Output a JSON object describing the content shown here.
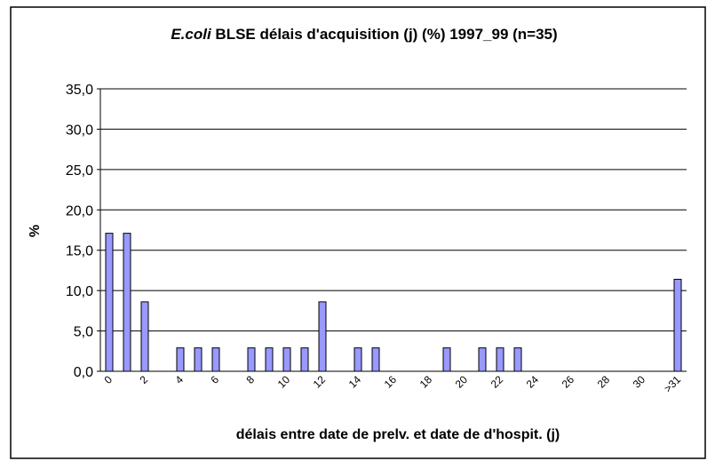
{
  "chart_data": {
    "type": "bar",
    "title_italic": "E.coli",
    "title": "BLSE délais d'acquisition (j) (%) 1997_99 (n=35)",
    "x_label": "délais entre date de prelv. et date de d'hospit. (j)",
    "y_label": "%",
    "categories": [
      "0",
      null,
      "2",
      null,
      "4",
      null,
      "6",
      null,
      "8",
      null,
      "10",
      null,
      "12",
      null,
      "14",
      null,
      "16",
      null,
      "18",
      null,
      "20",
      null,
      "22",
      null,
      "24",
      null,
      "26",
      null,
      "28",
      null,
      "30",
      null,
      ">31"
    ],
    "values": [
      17.1,
      17.1,
      8.6,
      0,
      2.9,
      2.9,
      2.9,
      0,
      2.9,
      2.9,
      2.9,
      2.9,
      8.6,
      0,
      2.9,
      2.9,
      0,
      0,
      0,
      2.9,
      0,
      2.9,
      2.9,
      2.9,
      0,
      0,
      0,
      0,
      0,
      0,
      0,
      0,
      11.4
    ],
    "color": "#9999ff",
    "ylim": [
      0,
      35
    ],
    "yticks": [
      {
        "value": 0,
        "label": "0,0"
      },
      {
        "value": 5,
        "label": "5,0"
      },
      {
        "value": 10,
        "label": "10,0"
      },
      {
        "value": 15,
        "label": "15,0"
      },
      {
        "value": 20,
        "label": "20,0"
      },
      {
        "value": 25,
        "label": "25,0"
      },
      {
        "value": 30,
        "label": "30,0"
      },
      {
        "value": 35,
        "label": "35,0"
      }
    ],
    "grid": true
  }
}
